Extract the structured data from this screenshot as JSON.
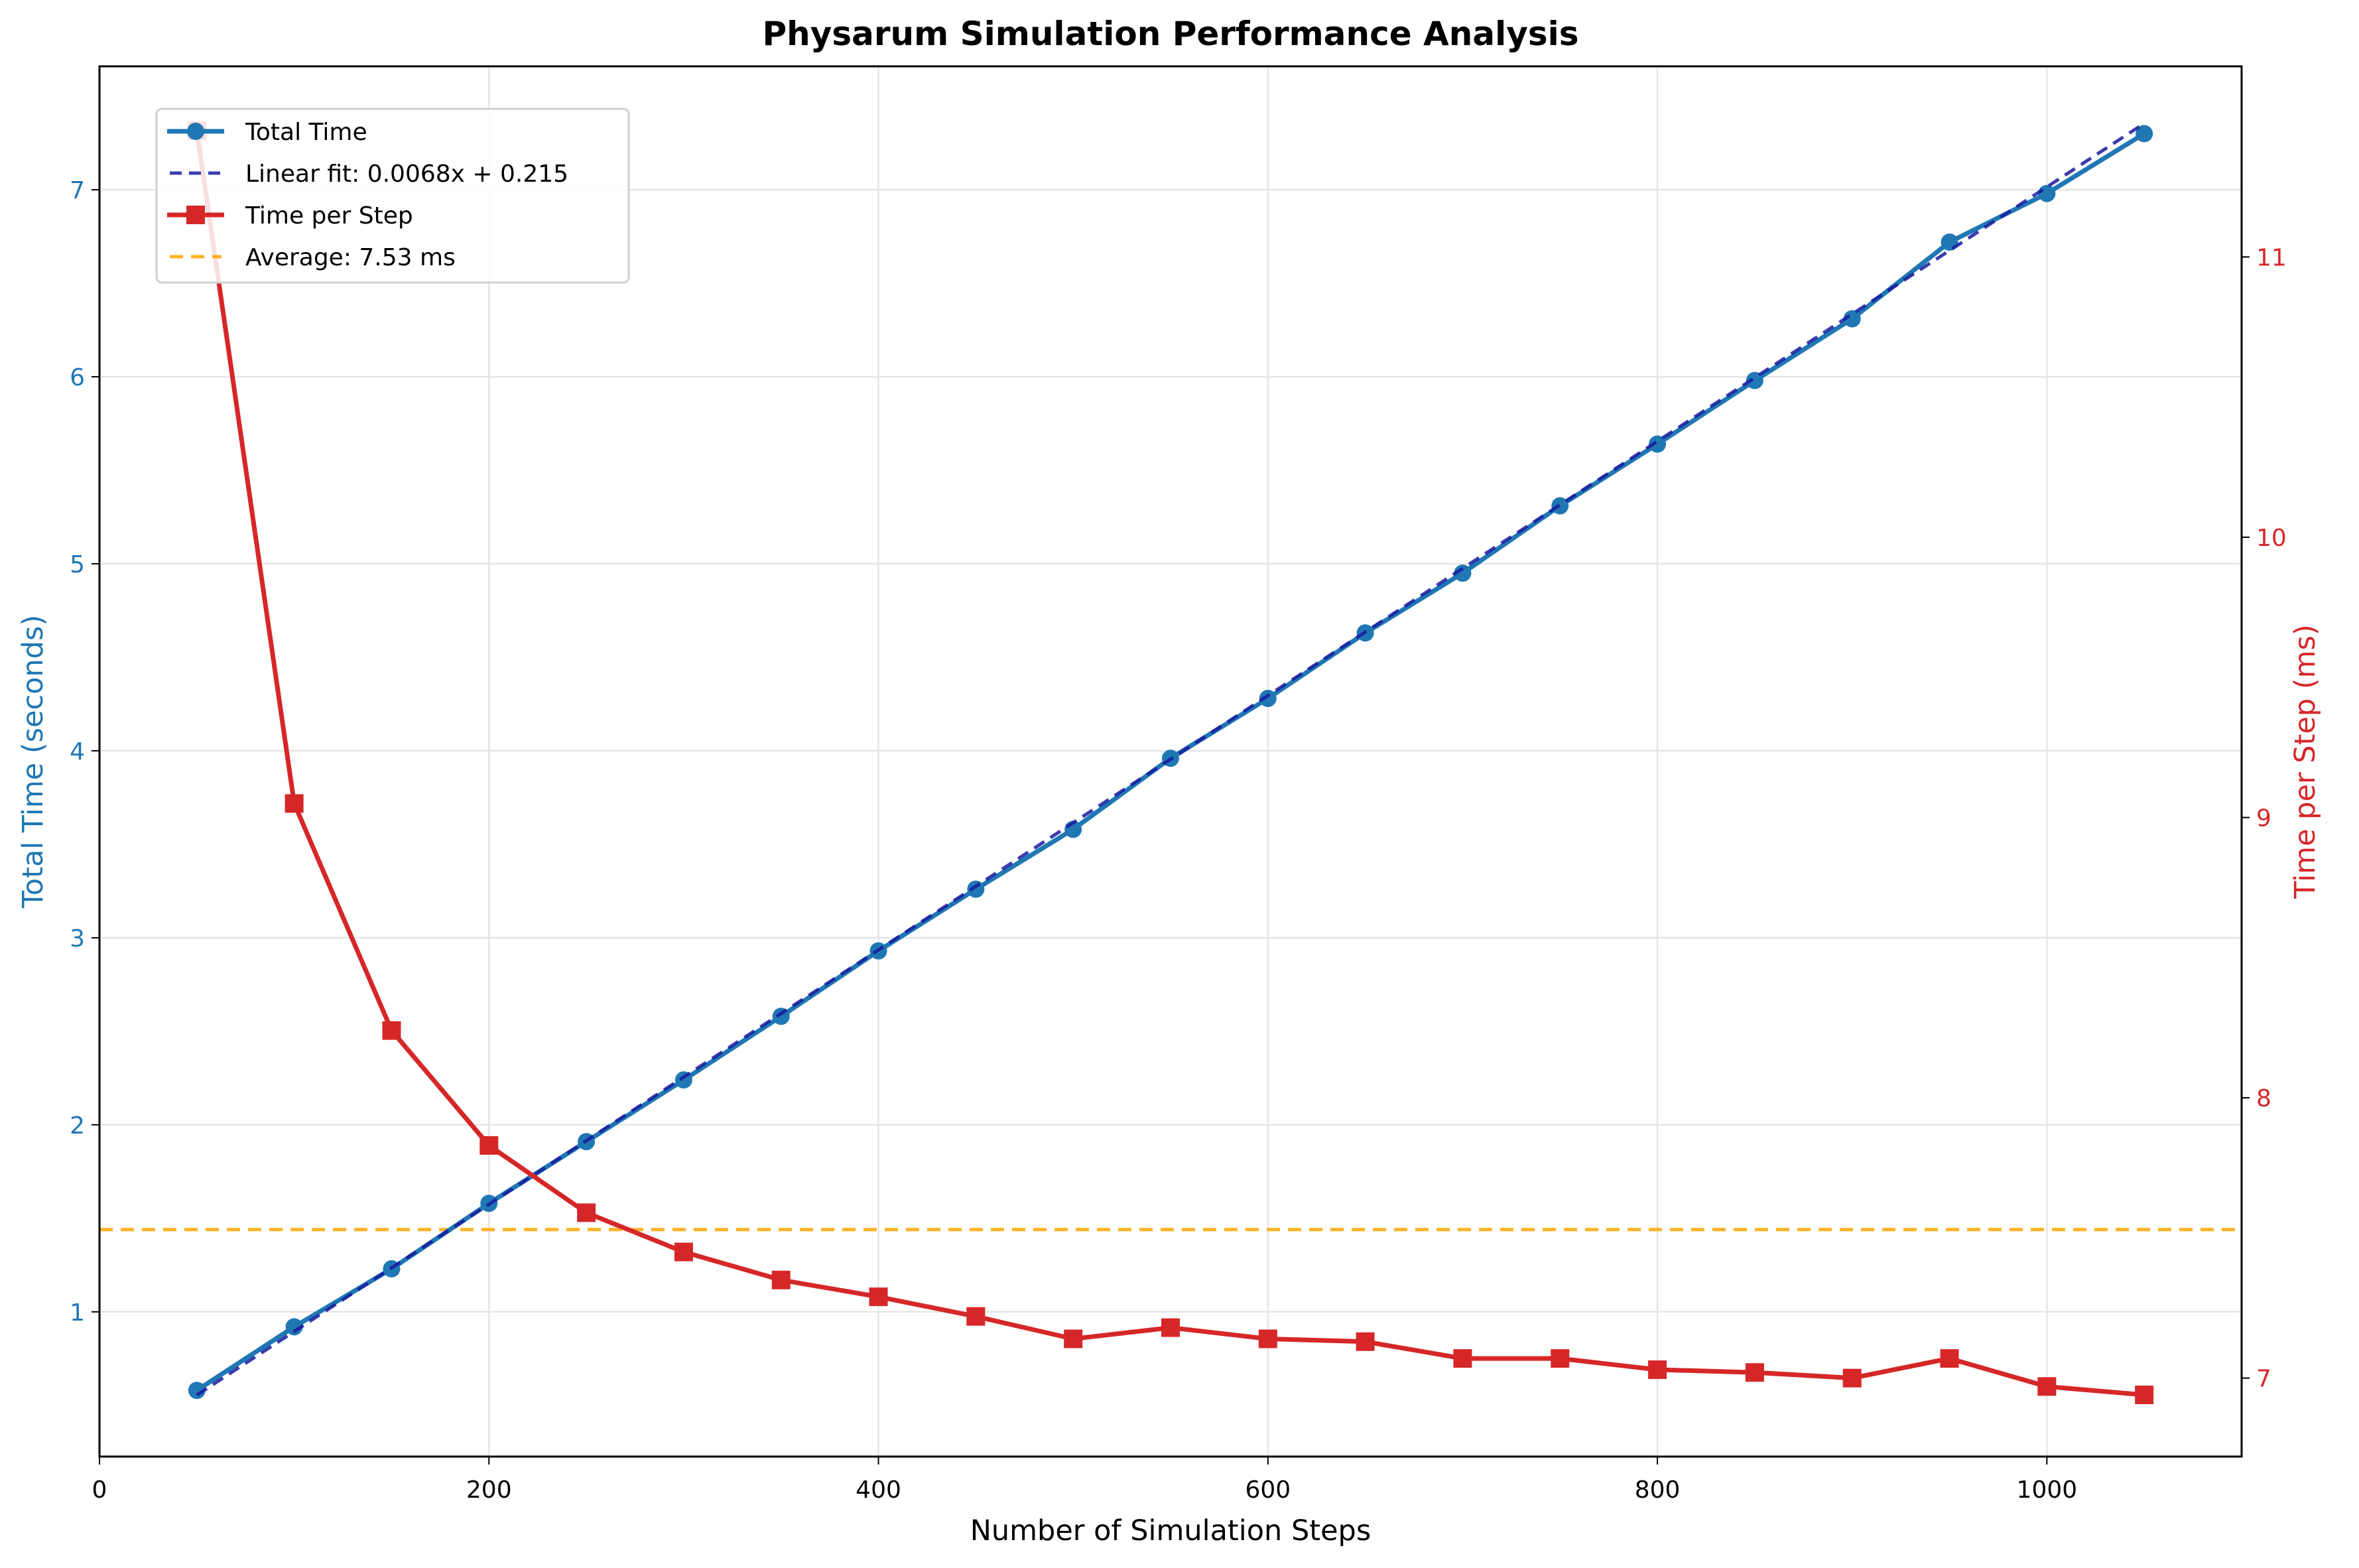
{
  "chart_data": {
    "type": "line",
    "title": "Physarum Simulation Performance Analysis",
    "xlabel": "Number of Simulation Steps",
    "ylabel_left": "Total Time (seconds)",
    "ylabel_right": "Time per Step (ms)",
    "xlim": [
      0,
      1100
    ],
    "ylim_left": [
      0.226,
      7.66
    ],
    "ylim_right": [
      6.72,
      11.68
    ],
    "grid": true,
    "legend_position": "upper-left",
    "x_ticks": [
      0,
      200,
      400,
      600,
      800,
      1000
    ],
    "x_tick_labels": [
      "0",
      "200",
      "400",
      "600",
      "800",
      "1000"
    ],
    "y_left_ticks": [
      1,
      2,
      3,
      4,
      5,
      6,
      7
    ],
    "y_left_tick_labels": [
      "1",
      "2",
      "3",
      "4",
      "5",
      "6",
      "7"
    ],
    "y_right_ticks": [
      7,
      8,
      9,
      10,
      11
    ],
    "y_right_tick_labels": [
      "7",
      "8",
      "9",
      "10",
      "11"
    ],
    "x": [
      50,
      100,
      150,
      200,
      250,
      300,
      350,
      400,
      450,
      500,
      550,
      600,
      650,
      700,
      750,
      800,
      850,
      900,
      950,
      1000,
      1050
    ],
    "series": [
      {
        "name": "Total Time",
        "axis": "left",
        "color": "#1f77b4",
        "marker": "circle",
        "values": [
          0.58,
          0.92,
          1.23,
          1.58,
          1.91,
          2.24,
          2.58,
          2.93,
          3.26,
          3.58,
          3.96,
          4.28,
          4.63,
          4.95,
          5.31,
          5.64,
          5.98,
          6.31,
          6.72,
          6.98,
          7.3
        ]
      },
      {
        "name": "Time per Step",
        "axis": "right",
        "color": "#d62728",
        "marker": "square",
        "values": [
          11.45,
          9.05,
          8.24,
          7.83,
          7.59,
          7.45,
          7.35,
          7.29,
          7.22,
          7.14,
          7.18,
          7.14,
          7.13,
          7.07,
          7.07,
          7.03,
          7.02,
          7.0,
          7.07,
          6.97,
          6.94
        ]
      }
    ],
    "fit": {
      "name": "Linear fit: 0.0068x + 0.215",
      "axis": "left",
      "color": "#1a1aa0",
      "slope": 0.0068,
      "intercept": 0.215,
      "x_range": [
        50,
        1050
      ]
    },
    "average": {
      "name": "Average: 7.53 ms",
      "axis": "right",
      "color": "#ffa500",
      "value": 7.53
    },
    "colors": {
      "left_axis": "#1f77b4",
      "right_axis": "#d62728"
    }
  }
}
